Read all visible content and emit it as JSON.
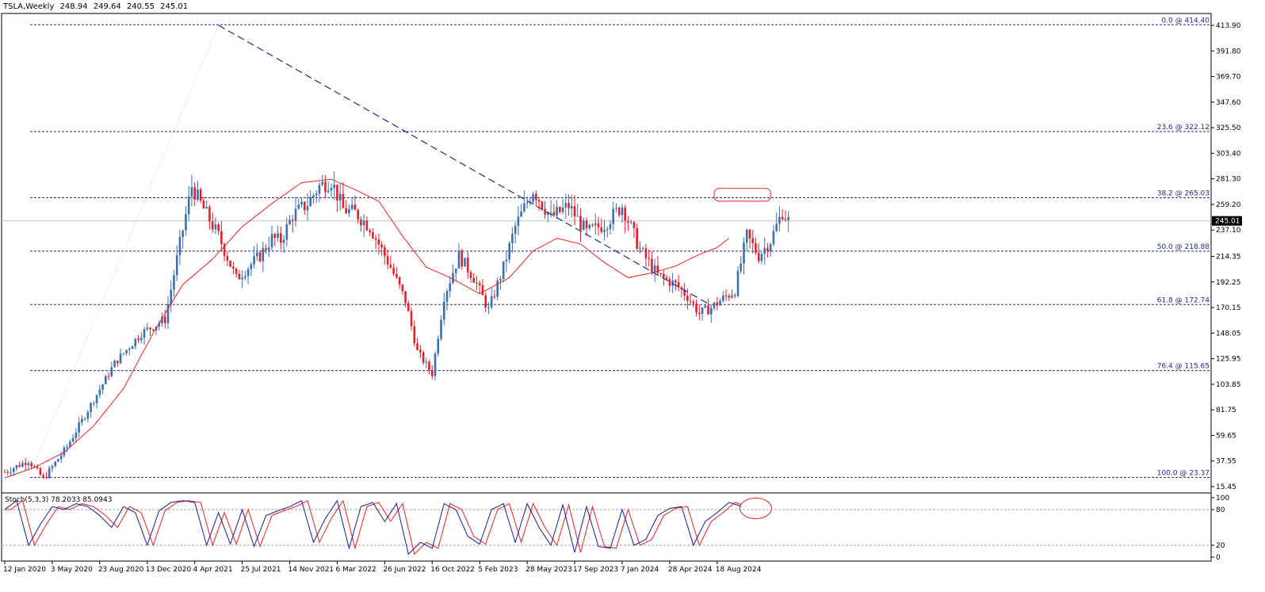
{
  "header": {
    "symbol": "TSLA,Weekly",
    "open": "248.94",
    "high": "249.64",
    "low": "240.55",
    "close": "245.01"
  },
  "colors": {
    "bull": "#3a6fb0",
    "bear": "#e0202a",
    "ma": "#ee2222",
    "fib": "#1f2a8a",
    "trend": "#1f2a8a",
    "stoch_main": "#1a1a99",
    "stoch_signal": "#ee2222",
    "highlight": "#ee2222",
    "price_tag_bg": "#000000",
    "price_tag_fg": "#ffffff"
  },
  "chart_data": {
    "type": "candlestick",
    "price_axis": {
      "ticks": [
        "413.90",
        "391.80",
        "369.70",
        "347.60",
        "325.50",
        "303.40",
        "281.30",
        "259.20",
        "237.10",
        "214.35",
        "192.25",
        "170.15",
        "148.05",
        "125.95",
        "103.85",
        "81.75",
        "59.65",
        "37.55",
        "15.45"
      ],
      "range": [
        15.45,
        413.9
      ]
    },
    "current_price_label": "245.01",
    "x_axis_labels": [
      "12 Jan 2020",
      "3 May 2020",
      "23 Aug 2020",
      "13 Dec 2020",
      "4 Apr 2021",
      "25 Jul 2021",
      "14 Nov 2021",
      "6 Mar 2022",
      "26 Jun 2022",
      "16 Oct 2022",
      "5 Feb 2023",
      "28 May 2023",
      "17 Sep 2023",
      "7 Jan 2024",
      "28 Apr 2024",
      "18 Aug 2024"
    ],
    "fib_levels": [
      {
        "label": "0.0 @ 414.40",
        "price": 414.4
      },
      {
        "label": "23.6 @ 322.12",
        "price": 322.12
      },
      {
        "label": "38.2 @ 265.03",
        "price": 265.03
      },
      {
        "label": "50.0 @ 218.88",
        "price": 218.88
      },
      {
        "label": "61.8 @ 172.74",
        "price": 172.74
      },
      {
        "label": "76.4 @ 115.65",
        "price": 115.65
      },
      {
        "label": "100.0 @ 23.37",
        "price": 23.37
      }
    ],
    "trendline": {
      "from": {
        "week": 72,
        "price": 414
      },
      "to": {
        "week": 238,
        "price": 172
      }
    },
    "anchors": [
      [
        0,
        28
      ],
      [
        8,
        38
      ],
      [
        13,
        22
      ],
      [
        21,
        50
      ],
      [
        29,
        86
      ],
      [
        37,
        122
      ],
      [
        46,
        148
      ],
      [
        54,
        160
      ],
      [
        59,
        225
      ],
      [
        63,
        275
      ],
      [
        66,
        260
      ],
      [
        72,
        232
      ],
      [
        78,
        195
      ],
      [
        82,
        205
      ],
      [
        86,
        215
      ],
      [
        90,
        230
      ],
      [
        93,
        228
      ],
      [
        97,
        250
      ],
      [
        102,
        260
      ],
      [
        106,
        275
      ],
      [
        110,
        280
      ],
      [
        114,
        255
      ],
      [
        118,
        252
      ],
      [
        123,
        240
      ],
      [
        126,
        225
      ],
      [
        130,
        205
      ],
      [
        135,
        176
      ],
      [
        139,
        132
      ],
      [
        144,
        113
      ],
      [
        148,
        180
      ],
      [
        153,
        215
      ],
      [
        158,
        196
      ],
      [
        163,
        168
      ],
      [
        168,
        205
      ],
      [
        172,
        240
      ],
      [
        178,
        272
      ],
      [
        184,
        248
      ],
      [
        190,
        258
      ],
      [
        196,
        235
      ],
      [
        202,
        242
      ],
      [
        208,
        258
      ],
      [
        214,
        220
      ],
      [
        220,
        198
      ],
      [
        226,
        190
      ],
      [
        230,
        180
      ],
      [
        234,
        165
      ],
      [
        238,
        170
      ],
      [
        242,
        178
      ],
      [
        246,
        185
      ],
      [
        250,
        232
      ],
      [
        254,
        215
      ],
      [
        258,
        228
      ],
      [
        262,
        253
      ],
      [
        264,
        245
      ]
    ],
    "ma_anchors": [
      [
        0,
        23
      ],
      [
        10,
        32
      ],
      [
        20,
        45
      ],
      [
        30,
        68
      ],
      [
        40,
        100
      ],
      [
        50,
        148
      ],
      [
        60,
        190
      ],
      [
        70,
        212
      ],
      [
        80,
        240
      ],
      [
        90,
        260
      ],
      [
        100,
        278
      ],
      [
        110,
        281
      ],
      [
        118,
        272
      ],
      [
        126,
        262
      ],
      [
        134,
        232
      ],
      [
        142,
        205
      ],
      [
        150,
        196
      ],
      [
        160,
        182
      ],
      [
        170,
        196
      ],
      [
        178,
        219
      ],
      [
        186,
        230
      ],
      [
        194,
        225
      ],
      [
        202,
        209
      ],
      [
        210,
        196
      ],
      [
        218,
        200
      ],
      [
        226,
        206
      ],
      [
        234,
        216
      ],
      [
        240,
        222
      ],
      [
        244,
        230
      ]
    ],
    "stochastic": {
      "label": "Stoch(5,3,3) 78.2033 85.0943",
      "k": 78.2033,
      "d": 85.0943,
      "levels": [
        80,
        20
      ],
      "axis_ticks": [
        "100",
        "80",
        "20",
        "0"
      ],
      "k_anchors": [
        [
          0,
          80
        ],
        [
          4,
          95
        ],
        [
          8,
          20
        ],
        [
          12,
          55
        ],
        [
          16,
          85
        ],
        [
          20,
          80
        ],
        [
          24,
          90
        ],
        [
          28,
          85
        ],
        [
          32,
          70
        ],
        [
          36,
          50
        ],
        [
          40,
          85
        ],
        [
          44,
          75
        ],
        [
          48,
          20
        ],
        [
          52,
          78
        ],
        [
          56,
          92
        ],
        [
          60,
          95
        ],
        [
          64,
          92
        ],
        [
          68,
          20
        ],
        [
          72,
          75
        ],
        [
          76,
          22
        ],
        [
          80,
          80
        ],
        [
          84,
          18
        ],
        [
          88,
          70
        ],
        [
          92,
          78
        ],
        [
          96,
          85
        ],
        [
          100,
          95
        ],
        [
          104,
          25
        ],
        [
          108,
          65
        ],
        [
          112,
          95
        ],
        [
          116,
          15
        ],
        [
          120,
          85
        ],
        [
          124,
          92
        ],
        [
          128,
          60
        ],
        [
          132,
          90
        ],
        [
          136,
          5
        ],
        [
          140,
          25
        ],
        [
          144,
          15
        ],
        [
          148,
          90
        ],
        [
          152,
          80
        ],
        [
          156,
          35
        ],
        [
          160,
          22
        ],
        [
          164,
          80
        ],
        [
          168,
          90
        ],
        [
          172,
          25
        ],
        [
          176,
          90
        ],
        [
          180,
          50
        ],
        [
          184,
          20
        ],
        [
          188,
          88
        ],
        [
          192,
          8
        ],
        [
          196,
          85
        ],
        [
          200,
          18
        ],
        [
          204,
          15
        ],
        [
          208,
          80
        ],
        [
          212,
          20
        ],
        [
          216,
          30
        ],
        [
          220,
          70
        ],
        [
          224,
          82
        ],
        [
          228,
          85
        ],
        [
          232,
          20
        ],
        [
          236,
          60
        ],
        [
          240,
          75
        ],
        [
          244,
          92
        ],
        [
          248,
          86
        ]
      ]
    },
    "annotations": [
      {
        "type": "rect",
        "week_from": 239,
        "week_to": 258,
        "price_from": 262,
        "price_to": 273
      },
      {
        "type": "ellipse",
        "week_center": 253,
        "stoch_level": 82
      }
    ]
  }
}
